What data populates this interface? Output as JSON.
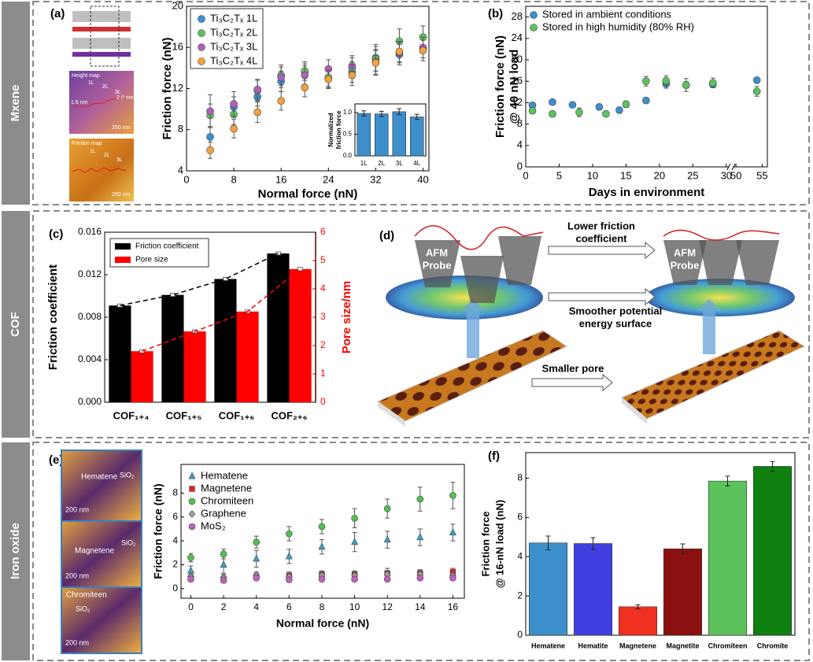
{
  "sections": [
    "Mxene",
    "COF",
    "Iron oxide"
  ],
  "panel_labels": [
    "(a)",
    "(b)",
    "(c)",
    "(d)",
    "(e)",
    "(f)"
  ],
  "images_a": {
    "height_map": {
      "title": "Height map",
      "labels": [
        "1L",
        "2L",
        "3L",
        "2.0 nm",
        "1.6 nm",
        "250 nm"
      ]
    },
    "friction_map": {
      "title": "Friction map",
      "labels": [
        "1L",
        "2L",
        "3L",
        "250 nm"
      ]
    }
  },
  "diagram_d": {
    "probes": [
      [
        "AFM",
        "Probe"
      ],
      [
        "AFM",
        "Probe"
      ]
    ],
    "arrows": [
      [
        "Lower friction",
        "coefficient"
      ],
      [
        "Smoother potential",
        "energy surface"
      ],
      [
        "Smaller pore"
      ]
    ]
  },
  "images_e": [
    {
      "labels": [
        "Hematene",
        "SiO₂",
        "200 nm"
      ]
    },
    {
      "labels": [
        "Magnetene",
        "SiO₂",
        "200 nm"
      ]
    },
    {
      "labels": [
        "Chromiteen",
        "SiO₂",
        "200 nm"
      ]
    }
  ],
  "chart_data": [
    {
      "type": "scatter",
      "x": [
        4,
        8,
        12,
        16,
        20,
        24,
        28,
        32,
        36,
        40
      ],
      "xlabel": "Normal force (nN)",
      "ylabel": "Friction force (nN)",
      "xlim": [
        0,
        41
      ],
      "xticks": [
        0,
        8,
        16,
        24,
        32,
        40
      ],
      "ylim": [
        4,
        20
      ],
      "yticks": [
        4,
        8,
        12,
        16,
        20
      ],
      "legend": "upper left",
      "series": [
        {
          "name": "Ti₃C₂Tₓ 1L",
          "color": "#3a8fd0",
          "marker": "circle",
          "values": [
            7.3,
            10.2,
            11.2,
            12.7,
            13.6,
            13.0,
            13.6,
            15.0,
            15.3,
            15.9
          ],
          "errors": [
            1.0,
            1.0,
            0.9,
            1.0,
            0.8,
            0.9,
            1.0,
            1.3,
            1.0,
            0.9
          ]
        },
        {
          "name": "Ti₃C₂Tₓ 2L",
          "color": "#5cc35c",
          "marker": "circle",
          "values": [
            9.4,
            9.5,
            11.8,
            13.3,
            13.7,
            13.1,
            14.0,
            14.9,
            16.6,
            17.0
          ],
          "errors": [
            1.1,
            1.0,
            1.0,
            1.0,
            0.9,
            0.9,
            1.0,
            1.2,
            1.2,
            1.1
          ]
        },
        {
          "name": "Ti₃C₂Tₓ 3L",
          "color": "#b05fc0",
          "marker": "circle",
          "values": [
            9.8,
            10.5,
            11.9,
            13.1,
            13.3,
            13.9,
            14.2,
            14.6,
            15.5,
            16.0
          ],
          "errors": [
            1.6,
            1.2,
            1.0,
            1.0,
            0.9,
            0.9,
            1.0,
            1.2,
            1.0,
            1.0
          ]
        },
        {
          "name": "Ti₃C₂Tₓ 4L",
          "color": "#f5a03a",
          "marker": "circle",
          "values": [
            6.0,
            8.1,
            9.7,
            10.8,
            12.1,
            12.9,
            13.3,
            14.5,
            15.6,
            15.7
          ],
          "errors": [
            0.8,
            0.9,
            1.0,
            0.9,
            0.9,
            0.9,
            1.0,
            1.2,
            1.0,
            1.0
          ]
        }
      ]
    },
    {
      "type": "bar",
      "categories": [
        "1L",
        "2L",
        "3L",
        "4L"
      ],
      "values": [
        0.98,
        0.97,
        1.02,
        0.9
      ],
      "errors": [
        0.06,
        0.06,
        0.07,
        0.06
      ],
      "color": "#3d8fcc",
      "ylabel": [
        "Normalized",
        "friction force"
      ],
      "ylim": [
        0,
        1.2
      ],
      "yticks": [
        {
          "value": 0,
          "label": "0.0"
        },
        {
          "value": 0.5,
          "label": "0.5"
        },
        {
          "value": 1,
          "label": "1.0"
        }
      ]
    },
    {
      "type": "scatter",
      "xlabel": "Days in environment",
      "ylabel": [
        "Friction force (nN)",
        "@ 40 nN load"
      ],
      "xlim": [
        0,
        56
      ],
      "xbreak": [
        30,
        50
      ],
      "xticks": [
        0,
        5,
        10,
        15,
        20,
        25,
        30,
        50,
        55
      ],
      "ylim": [
        0,
        30
      ],
      "yticks": [
        0,
        4,
        8,
        12,
        16,
        20,
        24,
        28
      ],
      "legend": "upper left",
      "series": [
        {
          "name": "Stored in ambient conditions",
          "color": "#3a8fd0",
          "marker": "circle",
          "x": [
            1,
            4,
            7,
            11,
            14,
            18,
            21,
            24,
            28,
            54
          ],
          "values": [
            11.5,
            12.1,
            11.6,
            11.2,
            10.6,
            12.4,
            15.5,
            15.3,
            15.4,
            16.2
          ],
          "errors": [
            0.4,
            0.4,
            0.4,
            0.4,
            0.5,
            0.5,
            0.8,
            0.6,
            0.6,
            0.4
          ]
        },
        {
          "name": "Stored in high humidity (80% RH)",
          "color": "#5cc35c",
          "marker": "circle",
          "x": [
            1,
            4,
            8,
            12,
            15,
            18,
            21,
            24,
            28,
            54
          ],
          "values": [
            10.5,
            9.9,
            10.2,
            9.9,
            11.7,
            16.0,
            16.1,
            15.3,
            15.7,
            14.1
          ],
          "errors": [
            0.6,
            0.5,
            0.8,
            0.5,
            0.6,
            0.9,
            0.9,
            1.2,
            0.9,
            0.9
          ]
        }
      ]
    },
    {
      "type": "bar",
      "categories": [
        "COF₁₊₄",
        "COF₁₊₅",
        "COF₁₊₆",
        "COF₂₊₆"
      ],
      "ylabel": "Friction coefficient",
      "y2label": "Pore size/nm",
      "ylim": [
        0,
        0.016
      ],
      "yticks": [
        {
          "value": 0,
          "label": "0.000"
        },
        {
          "value": 0.004,
          "label": "0.004"
        },
        {
          "value": 0.008,
          "label": "0.008"
        },
        {
          "value": 0.012,
          "label": "0.012"
        },
        {
          "value": 0.016,
          "label": "0.016"
        }
      ],
      "y2lim": [
        0,
        6
      ],
      "y2ticks": [
        0,
        1,
        2,
        3,
        4,
        5,
        6
      ],
      "trend_lines": true,
      "legend": "upper left",
      "series": [
        {
          "name": "Friction coefficient",
          "color": "#000000",
          "values": [
            0.0091,
            0.0101,
            0.0116,
            0.014
          ],
          "errors": [
            0.0001,
            0.0001,
            0.0001,
            0.0001
          ]
        },
        {
          "name": "Pore size",
          "color": "#ff0000",
          "axis": "y2",
          "values": [
            1.8,
            2.5,
            3.2,
            4.7
          ],
          "errors": [
            0.04,
            0.04,
            0.04,
            0.04
          ]
        }
      ]
    },
    {
      "type": "scatter",
      "x": [
        0,
        2,
        4,
        6,
        8,
        10,
        12,
        14,
        16
      ],
      "xlabel": "Normal force (nN)",
      "ylabel": "Friction force (nN)",
      "xlim": [
        -0.6,
        16.7
      ],
      "xticks": [
        0,
        2,
        4,
        6,
        8,
        10,
        12,
        14,
        16
      ],
      "ylim": [
        -0.8,
        10.4
      ],
      "yticks": [
        0,
        2,
        4,
        6,
        8
      ],
      "legend": "upper left",
      "series": [
        {
          "name": "Hematene",
          "color": "#3aa0d0",
          "marker": "triangle",
          "values": [
            1.5,
            2.0,
            2.5,
            2.7,
            3.5,
            3.9,
            4.1,
            4.3,
            4.7
          ],
          "errors": [
            0.4,
            0.7,
            0.7,
            0.6,
            0.6,
            0.8,
            0.7,
            0.7,
            0.7
          ]
        },
        {
          "name": "Magnetene",
          "color": "#e8241c",
          "marker": "square",
          "values": [
            0.9,
            0.8,
            1.0,
            1.1,
            1.2,
            1.2,
            1.3,
            1.3,
            1.4
          ],
          "errors": [
            0.3,
            0.3,
            0.3,
            0.3,
            0.3,
            0.3,
            0.4,
            0.3,
            0.3
          ]
        },
        {
          "name": "Chromiteen",
          "color": "#52c052",
          "marker": "circle",
          "values": [
            2.6,
            2.9,
            3.9,
            4.6,
            5.2,
            5.9,
            6.7,
            7.5,
            7.8
          ],
          "errors": [
            0.35,
            0.4,
            0.5,
            0.6,
            0.6,
            0.8,
            0.8,
            1.0,
            1.1
          ]
        },
        {
          "name": "Graphene",
          "color": "#a0a0a0",
          "marker": "diamond",
          "values": [
            1.0,
            0.9,
            1.1,
            1.0,
            1.1,
            1.1,
            1.2,
            1.2,
            1.1
          ],
          "errors": [
            0.3,
            0.3,
            0.3,
            0.3,
            0.3,
            0.3,
            0.3,
            0.3,
            0.3
          ]
        },
        {
          "name": "MoS₂",
          "color": "#c060c0",
          "marker": "circle",
          "values": [
            0.8,
            0.7,
            0.9,
            0.75,
            0.8,
            0.8,
            0.8,
            0.9,
            0.9
          ],
          "errors": [
            0.2,
            0.2,
            0.2,
            0.2,
            0.2,
            0.2,
            0.2,
            0.2,
            0.2
          ]
        }
      ]
    },
    {
      "type": "bar",
      "categories": [
        "Hematene",
        "Hematite",
        "Magnetene",
        "Magnetite",
        "Chromiteen",
        "Chromite"
      ],
      "values": [
        4.7,
        4.67,
        1.45,
        4.4,
        7.85,
        8.6
      ],
      "errors": [
        0.35,
        0.3,
        0.1,
        0.25,
        0.25,
        0.25
      ],
      "colors": [
        "#3d8fcc",
        "#4040e0",
        "#f03020",
        "#8b1010",
        "#5cc35c",
        "#108010"
      ],
      "ylabel": [
        "Friction force",
        "@ 16-nN load (nN)"
      ],
      "ylim": [
        0,
        9.3
      ],
      "yticks": [
        0,
        2,
        4,
        6,
        8
      ]
    }
  ]
}
